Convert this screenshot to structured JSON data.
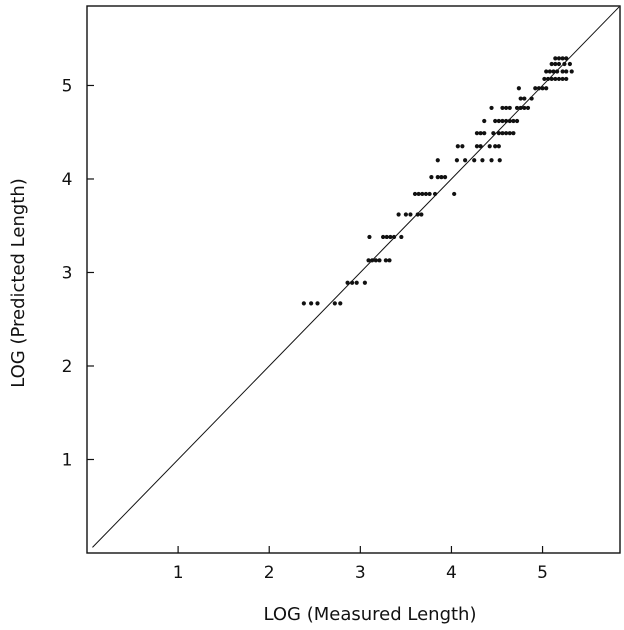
{
  "chart_data": {
    "type": "scatter",
    "xlabel": "LOG (Measured Length)",
    "ylabel": "LOG (Predicted Length)",
    "xlim": [
      0,
      5.85
    ],
    "ylim": [
      0,
      5.85
    ],
    "xticks": [
      1,
      2,
      3,
      4,
      5
    ],
    "yticks": [
      1,
      2,
      3,
      4,
      5
    ],
    "grid": false,
    "reference_line": {
      "type": "identity",
      "description": "y = x"
    },
    "series": [
      {
        "points": [
          [
            2.38,
            2.67
          ],
          [
            2.46,
            2.67
          ],
          [
            2.53,
            2.67
          ],
          [
            2.72,
            2.67
          ],
          [
            2.78,
            2.67
          ],
          [
            2.86,
            2.89
          ],
          [
            2.91,
            2.89
          ],
          [
            2.96,
            2.89
          ],
          [
            3.05,
            2.89
          ],
          [
            3.09,
            3.13
          ],
          [
            3.13,
            3.13
          ],
          [
            3.17,
            3.13
          ],
          [
            3.21,
            3.13
          ],
          [
            3.28,
            3.13
          ],
          [
            3.32,
            3.13
          ],
          [
            3.1,
            3.38
          ],
          [
            3.25,
            3.38
          ],
          [
            3.29,
            3.38
          ],
          [
            3.33,
            3.38
          ],
          [
            3.37,
            3.38
          ],
          [
            3.45,
            3.38
          ],
          [
            3.42,
            3.62
          ],
          [
            3.5,
            3.62
          ],
          [
            3.55,
            3.62
          ],
          [
            3.63,
            3.62
          ],
          [
            3.67,
            3.62
          ],
          [
            3.6,
            3.84
          ],
          [
            3.64,
            3.84
          ],
          [
            3.68,
            3.84
          ],
          [
            3.72,
            3.84
          ],
          [
            3.76,
            3.84
          ],
          [
            3.82,
            3.84
          ],
          [
            4.03,
            3.84
          ],
          [
            3.85,
            4.02
          ],
          [
            3.89,
            4.02
          ],
          [
            3.93,
            4.02
          ],
          [
            3.78,
            4.02
          ],
          [
            3.85,
            4.2
          ],
          [
            4.06,
            4.2
          ],
          [
            4.15,
            4.2
          ],
          [
            4.25,
            4.2
          ],
          [
            4.34,
            4.2
          ],
          [
            4.44,
            4.2
          ],
          [
            4.53,
            4.2
          ],
          [
            4.07,
            4.35
          ],
          [
            4.12,
            4.35
          ],
          [
            4.28,
            4.35
          ],
          [
            4.32,
            4.35
          ],
          [
            4.42,
            4.35
          ],
          [
            4.48,
            4.35
          ],
          [
            4.52,
            4.35
          ],
          [
            4.28,
            4.49
          ],
          [
            4.32,
            4.49
          ],
          [
            4.36,
            4.49
          ],
          [
            4.46,
            4.49
          ],
          [
            4.52,
            4.49
          ],
          [
            4.56,
            4.49
          ],
          [
            4.6,
            4.49
          ],
          [
            4.64,
            4.49
          ],
          [
            4.68,
            4.49
          ],
          [
            4.48,
            4.62
          ],
          [
            4.52,
            4.62
          ],
          [
            4.56,
            4.62
          ],
          [
            4.6,
            4.62
          ],
          [
            4.64,
            4.62
          ],
          [
            4.68,
            4.62
          ],
          [
            4.72,
            4.62
          ],
          [
            4.36,
            4.62
          ],
          [
            4.56,
            4.76
          ],
          [
            4.6,
            4.76
          ],
          [
            4.64,
            4.76
          ],
          [
            4.72,
            4.76
          ],
          [
            4.76,
            4.76
          ],
          [
            4.8,
            4.76
          ],
          [
            4.84,
            4.76
          ],
          [
            4.44,
            4.76
          ],
          [
            4.76,
            4.86
          ],
          [
            4.8,
            4.86
          ],
          [
            4.88,
            4.86
          ],
          [
            4.74,
            4.97
          ],
          [
            4.92,
            4.97
          ],
          [
            4.96,
            4.97
          ],
          [
            5.0,
            4.97
          ],
          [
            5.04,
            4.97
          ],
          [
            5.02,
            5.07
          ],
          [
            5.06,
            5.07
          ],
          [
            5.1,
            5.07
          ],
          [
            5.14,
            5.07
          ],
          [
            5.18,
            5.07
          ],
          [
            5.22,
            5.07
          ],
          [
            5.26,
            5.07
          ],
          [
            5.04,
            5.15
          ],
          [
            5.08,
            5.15
          ],
          [
            5.12,
            5.15
          ],
          [
            5.16,
            5.15
          ],
          [
            5.22,
            5.15
          ],
          [
            5.26,
            5.15
          ],
          [
            5.32,
            5.15
          ],
          [
            5.1,
            5.23
          ],
          [
            5.14,
            5.23
          ],
          [
            5.18,
            5.23
          ],
          [
            5.24,
            5.23
          ],
          [
            5.3,
            5.23
          ],
          [
            5.14,
            5.29
          ],
          [
            5.18,
            5.29
          ],
          [
            5.22,
            5.29
          ],
          [
            5.26,
            5.29
          ]
        ]
      }
    ]
  }
}
